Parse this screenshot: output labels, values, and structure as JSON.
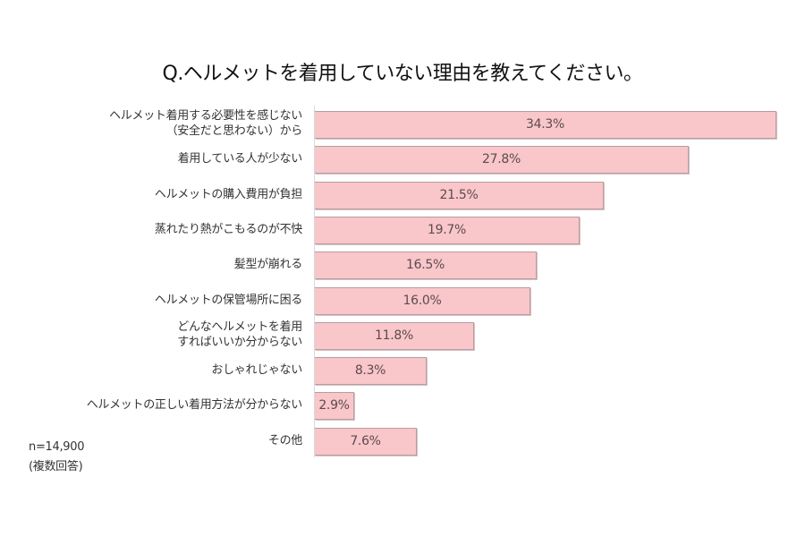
{
  "chart_data": {
    "type": "bar",
    "orientation": "horizontal",
    "title": "Q.ヘルメットを着用していない理由を教えてください。",
    "categories": [
      "ヘルメット着用する必要性を感じない（安全だと思わない）から",
      "着用している人が少ない",
      "ヘルメットの購入費用が負担",
      "蒸れたり熱がこもるのが不快",
      "髪型が崩れる",
      "ヘルメットの保管場所に困る",
      "どんなヘルメットを着用すればいいか分からない",
      "おしゃれじゃない",
      "ヘルメットの正しい着用方法が分からない",
      "その他"
    ],
    "values": [
      34.3,
      27.8,
      21.5,
      19.7,
      16.5,
      16.0,
      11.8,
      8.3,
      2.9,
      7.6
    ],
    "unit": "%",
    "xlabel": "",
    "ylabel": "",
    "xlim": [
      0,
      34.3
    ],
    "grid": false,
    "legend": null,
    "annotations": [
      "n=14,900",
      "(複数回答)"
    ],
    "bar_color": "#f9c6c9",
    "bar_border_color": "#b89ca0"
  },
  "title": "Q.ヘルメットを着用していない理由を教えてください。",
  "rows": [
    {
      "label_lines": [
        "ヘルメット着用する必要性を感じない",
        "（安全だと思わない）から"
      ],
      "value": 34.3,
      "value_label": "34.3%"
    },
    {
      "label_lines": [
        "着用している人が少ない"
      ],
      "value": 27.8,
      "value_label": "27.8%"
    },
    {
      "label_lines": [
        "ヘルメットの購入費用が負担"
      ],
      "value": 21.5,
      "value_label": "21.5%"
    },
    {
      "label_lines": [
        "蒸れたり熱がこもるのが不快"
      ],
      "value": 19.7,
      "value_label": "19.7%"
    },
    {
      "label_lines": [
        "髪型が崩れる"
      ],
      "value": 16.5,
      "value_label": "16.5%"
    },
    {
      "label_lines": [
        "ヘルメットの保管場所に困る"
      ],
      "value": 16.0,
      "value_label": "16.0%"
    },
    {
      "label_lines": [
        "どんなヘルメットを着用",
        "すればいいか分からない"
      ],
      "value": 11.8,
      "value_label": "11.8%"
    },
    {
      "label_lines": [
        "おしゃれじゃない"
      ],
      "value": 8.3,
      "value_label": "8.3%"
    },
    {
      "label_lines": [
        "ヘルメットの正しい着用方法が分からない"
      ],
      "value": 2.9,
      "value_label": "2.9%"
    },
    {
      "label_lines": [
        "その他"
      ],
      "value": 7.6,
      "value_label": "7.6%"
    }
  ],
  "notes": {
    "sample_size": "n=14,900",
    "answer_type": "(複数回答)"
  }
}
